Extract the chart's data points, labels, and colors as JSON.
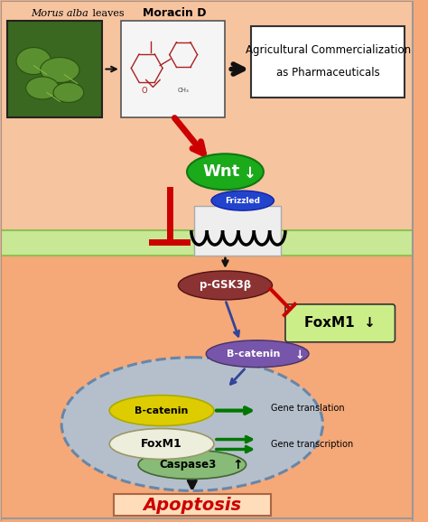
{
  "bg_color": "#F5A878",
  "membrane_color": "#C8E896",
  "membrane_border": "#90C050",
  "labels": {
    "morus_alba": "Morus alba leaves",
    "moracin_d": "Moracin D",
    "agri_line1": "Agricultural Commercialization",
    "agri_line2": "as Pharmaceuticals",
    "wnt": "Wnt",
    "frizzled": "Frizzled",
    "pgsk3b": "p-GSK3β",
    "foxm1_box": "FoxM1",
    "b_catenin_purple": "B-catenin",
    "b_catenin_yellow": "B-catenin",
    "foxm1_nucleus": "FoxM1",
    "gene_translation": "Gene translation",
    "gene_transcription": "Gene transcription",
    "caspase3": "Caspase3",
    "apoptosis": "Apoptosis"
  },
  "colors": {
    "wnt_ellipse": "#1AAA1A",
    "frizzled_ellipse": "#2244CC",
    "pgsk3b_ellipse": "#8B3333",
    "foxm1_box_fill": "#CCEE88",
    "b_catenin_purple": "#7755AA",
    "b_catenin_yellow": "#DDCC00",
    "foxm1_nucleus_fill": "#EEEEDD",
    "caspase3_ellipse": "#88BB77",
    "nucleus_fill": "#A0C8E8",
    "nucleus_border": "#4477AA",
    "red_arrow": "#CC0000",
    "black_arrow": "#111111",
    "green_arrow": "#007700",
    "blue_arrow": "#334499",
    "apoptosis_box": "#FFDDBB",
    "apoptosis_text": "#CC0000",
    "moracin_border": "#555555",
    "agri_box_fill": "#FFFFFF"
  }
}
